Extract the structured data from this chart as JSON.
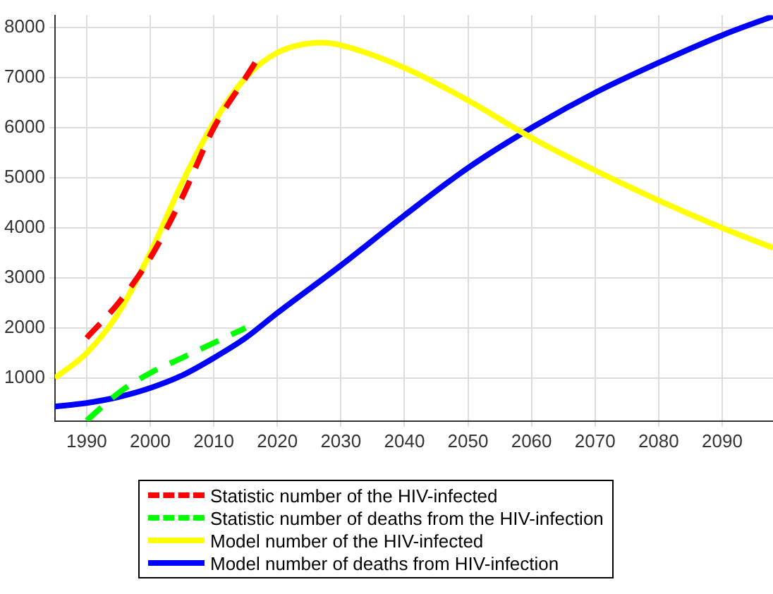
{
  "chart_data": {
    "type": "line",
    "xlim": [
      1985,
      2098
    ],
    "ylim": [
      140,
      8250
    ],
    "xticks": [
      1990,
      2000,
      2010,
      2020,
      2030,
      2040,
      2050,
      2060,
      2070,
      2080,
      2090
    ],
    "yticks": [
      1000,
      2000,
      3000,
      4000,
      5000,
      6000,
      7000,
      8000
    ],
    "grid": true,
    "legend": "bottom",
    "marker": "none",
    "series": [
      {
        "name": "Statistic number of the HIV-infected",
        "color": "#ff0000",
        "line_style": "dashed",
        "x": [
          1990,
          1995,
          2000,
          2005,
          2010,
          2015,
          2017
        ],
        "values": [
          1800,
          2500,
          3400,
          4600,
          6000,
          7000,
          7400
        ]
      },
      {
        "name": "Statistic number of deaths from the HIV-infection",
        "color": "#00ff00",
        "line_style": "dashed",
        "x": [
          1990,
          1995,
          2000,
          2005,
          2010,
          2015
        ],
        "values": [
          150,
          700,
          1100,
          1400,
          1700,
          2000
        ]
      },
      {
        "name": "Model number of the HIV-infected",
        "color": "#ffff00",
        "line_style": "solid",
        "x": [
          1985,
          1990,
          1995,
          2000,
          2005,
          2010,
          2015,
          2020,
          2027,
          2030,
          2040,
          2050,
          2060,
          2070,
          2080,
          2090,
          2098
        ],
        "values": [
          1000,
          1500,
          2300,
          3500,
          4900,
          6100,
          7000,
          7500,
          7700,
          7650,
          7200,
          6550,
          5800,
          5150,
          4550,
          4000,
          3600
        ]
      },
      {
        "name": "Model number of deaths from HIV-infection",
        "color": "#0000ff",
        "line_style": "solid",
        "x": [
          1985,
          1990,
          1995,
          2000,
          2005,
          2010,
          2015,
          2020,
          2030,
          2040,
          2050,
          2060,
          2070,
          2080,
          2090,
          2098
        ],
        "values": [
          430,
          500,
          620,
          800,
          1050,
          1400,
          1800,
          2300,
          3250,
          4250,
          5200,
          6000,
          6700,
          7300,
          7850,
          8230
        ]
      }
    ]
  }
}
